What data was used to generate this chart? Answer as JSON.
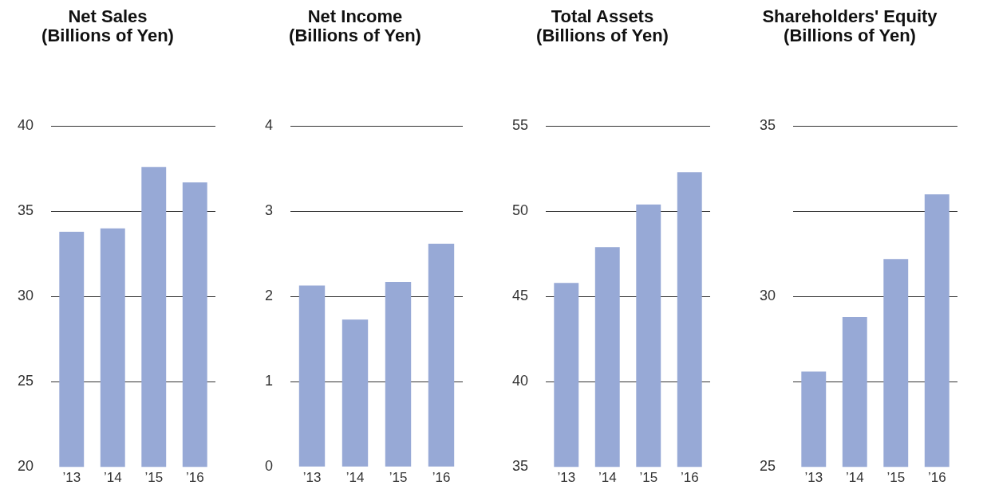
{
  "chart_data": [
    {
      "type": "bar",
      "title": "Net Sales\n(Billions of Yen)",
      "categories": [
        "’13",
        "’14",
        "’15",
        "’16"
      ],
      "values": [
        33.8,
        34.0,
        37.6,
        36.7
      ],
      "color": "#97a9d6",
      "ylim": [
        20,
        40
      ],
      "yticks": [
        20,
        25,
        30,
        35,
        40
      ],
      "grid": "y"
    },
    {
      "type": "bar",
      "title": "Net Income\n(Billions of Yen)",
      "categories": [
        "’13",
        "’14",
        "’15",
        "’16"
      ],
      "values": [
        2.13,
        1.73,
        2.17,
        2.62
      ],
      "color": "#97a9d6",
      "ylim": [
        0,
        4
      ],
      "yticks": [
        0,
        1,
        2,
        3,
        4
      ],
      "grid": "y"
    },
    {
      "type": "bar",
      "title": "Total Assets\n(Billions of Yen)",
      "categories": [
        "’13",
        "’14",
        "’15",
        "’16"
      ],
      "values": [
        45.8,
        47.9,
        50.4,
        52.3
      ],
      "color": "#97a9d6",
      "ylim": [
        35,
        55
      ],
      "yticks": [
        35,
        40,
        45,
        50,
        55
      ],
      "grid": "y"
    },
    {
      "type": "bar",
      "title": "Shareholders' Equity\n(Billions of Yen)",
      "categories": [
        "’13",
        "’14",
        "’15",
        "’16"
      ],
      "values": [
        27.8,
        29.4,
        31.1,
        33.0
      ],
      "color": "#97a9d6",
      "ylim": [
        25,
        35
      ],
      "yticks": [
        25,
        {
          "value": 27.5,
          "label": null
        },
        30,
        {
          "value": 32.5,
          "label": null
        },
        35
      ],
      "grid": "y"
    }
  ]
}
